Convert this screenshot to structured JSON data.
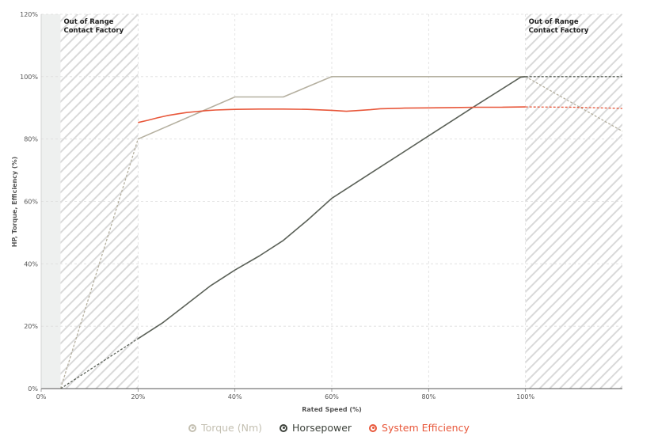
{
  "chart_data": {
    "type": "line",
    "xlabel": "Rated Speed (%)",
    "ylabel": "HP, Torque, Efficiency (%)",
    "xlim": [
      0,
      120
    ],
    "ylim": [
      0,
      120
    ],
    "x_ticks": [
      0,
      20,
      40,
      60,
      80,
      100
    ],
    "x_tick_labels": [
      "0%",
      "20%",
      "40%",
      "60%",
      "80%",
      "100%"
    ],
    "y_ticks": [
      0,
      20,
      40,
      60,
      80,
      100,
      120
    ],
    "y_tick_labels": [
      "0%",
      "20%",
      "40%",
      "60%",
      "80%",
      "100%",
      "120%"
    ],
    "grid": true,
    "legend_position": "bottom-center",
    "out_of_range_zones": [
      {
        "from": 4,
        "to": 20,
        "label_line1": "Out of Range",
        "label_line2": "Contact Factory"
      },
      {
        "from": 100,
        "to": 120,
        "label_line1": "Out of Range",
        "label_line2": "Contact Factory"
      }
    ],
    "series": [
      {
        "name": "Torque (Nm)",
        "color": "#b5b0a0",
        "segments": [
          {
            "style": "dashed",
            "x": [
              4,
              20
            ],
            "y": [
              0,
              80
            ]
          },
          {
            "style": "solid",
            "x": [
              20,
              40,
              50,
              60,
              100
            ],
            "y": [
              80,
              93.5,
              93.5,
              100,
              100
            ]
          },
          {
            "style": "dashed",
            "x": [
              100,
              120
            ],
            "y": [
              100,
              82.5
            ]
          }
        ]
      },
      {
        "name": "Horsepower",
        "color": "#5b6158",
        "segments": [
          {
            "style": "dashed",
            "x": [
              4,
              20
            ],
            "y": [
              0,
              16
            ]
          },
          {
            "style": "solid",
            "x": [
              20,
              25,
              30,
              35,
              40,
              45,
              50,
              55,
              60,
              70,
              80,
              90,
              99,
              100
            ],
            "y": [
              16,
              21,
              27,
              33,
              38,
              42.5,
              47.5,
              54,
              61,
              71,
              81,
              91,
              99.8,
              100
            ]
          },
          {
            "style": "dashed",
            "x": [
              100,
              120
            ],
            "y": [
              100,
              100
            ]
          }
        ]
      },
      {
        "name": "System Efficiency",
        "color": "#e8573a",
        "segments": [
          {
            "style": "solid",
            "x": [
              20,
              22,
              24,
              26,
              28,
              30,
              32,
              34,
              36,
              38,
              40,
              45,
              50,
              55,
              60,
              63,
              65,
              68,
              70,
              75,
              80,
              85,
              90,
              95,
              100
            ],
            "y": [
              85.3,
              86,
              86.8,
              87.5,
              88,
              88.5,
              88.8,
              89.1,
              89.3,
              89.4,
              89.5,
              89.6,
              89.6,
              89.5,
              89.2,
              88.9,
              89.1,
              89.4,
              89.7,
              89.9,
              90,
              90.1,
              90.2,
              90.2,
              90.3
            ]
          },
          {
            "style": "dashed",
            "x": [
              100,
              110,
              120
            ],
            "y": [
              90.3,
              90.2,
              89.8
            ]
          }
        ]
      }
    ]
  }
}
